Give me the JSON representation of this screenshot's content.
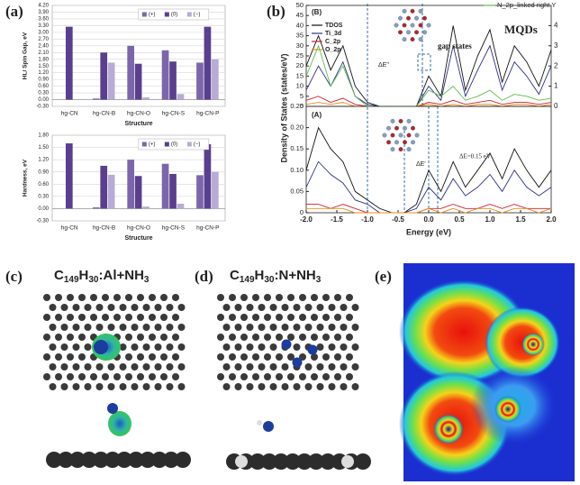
{
  "panels": [
    "(a)",
    "(b)",
    "(c)",
    "(d)",
    "(e)"
  ],
  "chart_data": [
    {
      "type": "bar",
      "ylabel": "HL/ Spin Gap, eV",
      "xlabel": "Structure",
      "categories": [
        "hg-CN",
        "hg-CN-B",
        "hg-CN-O",
        "hg-CN-S",
        "hg-CN-P"
      ],
      "series": [
        {
          "name": "(+)",
          "color": "#7b66ab",
          "values": [
            0,
            0.05,
            2.4,
            2.2,
            1.65
          ]
        },
        {
          "name": "(0)",
          "color": "#5a3f8e",
          "values": [
            3.25,
            2.1,
            1.6,
            1.7,
            3.25
          ]
        },
        {
          "name": "(−)",
          "color": "#b9abd3",
          "values": [
            0,
            1.65,
            0.1,
            0.25,
            1.8
          ]
        }
      ],
      "ylim": [
        -0.3,
        4.2
      ],
      "yticks": [
        {
          "value": -0.3,
          "label": "-0.30"
        },
        {
          "value": 0,
          "label": "0.00"
        },
        {
          "value": 0.3,
          "label": "0.30"
        },
        {
          "value": 0.6,
          "label": "0.60"
        },
        {
          "value": 0.9,
          "label": "0.90"
        },
        {
          "value": 1.2,
          "label": "1.20"
        },
        {
          "value": 1.5,
          "label": "1.50"
        },
        {
          "value": 1.8,
          "label": "1.80"
        },
        {
          "value": 2.1,
          "label": "2.10"
        },
        {
          "value": 2.4,
          "label": "2.40"
        },
        {
          "value": 2.7,
          "label": "2.70"
        },
        {
          "value": 3,
          "label": "3.00"
        },
        {
          "value": 3.3,
          "label": "3.30"
        },
        {
          "value": 3.6,
          "label": "3.60"
        },
        {
          "value": 3.9,
          "label": "3.90"
        },
        {
          "value": 4.2,
          "label": "4.20"
        }
      ],
      "grid": true
    },
    {
      "type": "bar",
      "ylabel": "Hardness, eV",
      "xlabel": "Structure",
      "categories": [
        "hg-CN",
        "hg-CN-B",
        "hg-CN-O",
        "hg-CN-S",
        "hg-CN-P"
      ],
      "series": [
        {
          "name": "(+)",
          "color": "#7b66ab",
          "values": [
            0,
            0.03,
            1.2,
            1.1,
            0.82
          ]
        },
        {
          "name": "(0)",
          "color": "#5a3f8e",
          "values": [
            1.6,
            1.05,
            0.8,
            0.85,
            1.58
          ]
        },
        {
          "name": "(−)",
          "color": "#b9abd3",
          "values": [
            0,
            0.83,
            0.05,
            0.12,
            0.9
          ]
        }
      ],
      "ylim": [
        -0.3,
        1.8
      ],
      "yticks": [
        {
          "value": -0.3,
          "label": "-0.30"
        },
        {
          "value": 0,
          "label": "0.00"
        },
        {
          "value": 0.3,
          "label": "0.30"
        },
        {
          "value": 0.6,
          "label": "0.60"
        },
        {
          "value": 0.9,
          "label": "0.90"
        },
        {
          "value": 1.2,
          "label": "1.20"
        },
        {
          "value": 1.5,
          "label": "1.50"
        },
        {
          "value": 1.8,
          "label": "1.80"
        }
      ],
      "grid": true
    },
    {
      "type": "line",
      "ylabel": "Density of States (states/eV)",
      "annotations": [
        "(B)",
        "gap states",
        "MQDs",
        "ΔE''"
      ],
      "x": [
        -2,
        -1.8,
        -1.6,
        -1.4,
        -1.2,
        -1,
        -0.8,
        -0.6,
        -0.4,
        -0.2,
        0,
        0.2,
        0.4,
        0.6,
        0.8,
        1,
        1.2,
        1.4,
        1.6,
        1.8,
        2
      ],
      "series": [
        {
          "name": "TDOS",
          "color": "#111111",
          "values": [
            20,
            35,
            18,
            30,
            10,
            2,
            0,
            0,
            0,
            0,
            15,
            5,
            40,
            8,
            25,
            38,
            12,
            30,
            22,
            10,
            28
          ]
        },
        {
          "name": "Ti_3d",
          "color": "#2b2f8a",
          "values": [
            8,
            20,
            10,
            22,
            5,
            1,
            0,
            0,
            0,
            0,
            10,
            3,
            30,
            5,
            18,
            30,
            8,
            22,
            15,
            6,
            20
          ]
        },
        {
          "name": "C_2p",
          "color": "#d0202a",
          "values": [
            3,
            5,
            2,
            4,
            1,
            0,
            0,
            0,
            0,
            0,
            2,
            1,
            3,
            1,
            2,
            3,
            1,
            2,
            2,
            1,
            2
          ]
        },
        {
          "name": "O_2p",
          "color": "#e88a1a",
          "values": [
            1,
            2,
            1,
            2,
            0,
            0,
            0,
            0,
            0,
            0,
            1,
            0,
            1,
            0,
            1,
            1,
            0,
            1,
            1,
            0,
            1
          ]
        },
        {
          "name": "N_2p_linked right Y",
          "color": "#5cbf4a",
          "axis": "y2",
          "values": [
            1.5,
            3,
            1,
            2,
            0.5,
            0,
            0,
            0,
            0,
            0,
            0.8,
            0.5,
            1,
            0.3,
            0.5,
            0.8,
            0.3,
            0.6,
            0.5,
            0.3,
            0.4
          ]
        }
      ],
      "xlim": [
        -2,
        2
      ],
      "ylim": [
        0,
        50
      ],
      "yticks": [
        0,
        5,
        10,
        15,
        20,
        25,
        30,
        35,
        40,
        45,
        50
      ],
      "y2lim": [
        0,
        5
      ],
      "y2ticks": [
        0,
        1,
        2,
        3,
        4
      ]
    },
    {
      "type": "line",
      "xlabel": "Energy (eV)",
      "annotations": [
        "(A)",
        "ΔE'",
        "ΔE=0.15 eV"
      ],
      "x": [
        -2,
        -1.8,
        -1.6,
        -1.4,
        -1.2,
        -1,
        -0.8,
        -0.6,
        -0.4,
        -0.2,
        0,
        0.2,
        0.4,
        0.6,
        0.8,
        1,
        1.2,
        1.4,
        1.6,
        1.8,
        2
      ],
      "series": [
        {
          "name": "TDOS",
          "color": "#111111",
          "values": [
            0.1,
            0.2,
            0.15,
            0.12,
            0.05,
            0.03,
            0.01,
            0,
            0,
            0.02,
            0.1,
            0.05,
            0.12,
            0.06,
            0.1,
            0.14,
            0.08,
            0.15,
            0.1,
            0.06,
            0.1
          ]
        },
        {
          "name": "Ti_3d",
          "color": "#2b2f8a",
          "values": [
            0.06,
            0.12,
            0.09,
            0.07,
            0.03,
            0.02,
            0,
            0,
            0,
            0.01,
            0.06,
            0.03,
            0.08,
            0.04,
            0.06,
            0.09,
            0.05,
            0.1,
            0.06,
            0.04,
            0.06
          ]
        },
        {
          "name": "C_2p",
          "color": "#d0202a",
          "values": [
            0.02,
            0.02,
            0.01,
            0.02,
            0.01,
            0,
            0,
            0,
            0,
            0,
            0.01,
            0.01,
            0.02,
            0.01,
            0.01,
            0.02,
            0.01,
            0.02,
            0.01,
            0.01,
            0.01
          ]
        },
        {
          "name": "O_2p",
          "color": "#e88a1a",
          "values": [
            0.01,
            0.01,
            0.01,
            0.01,
            0,
            0,
            0,
            0,
            0,
            0,
            0.01,
            0,
            0.01,
            0,
            0.01,
            0.01,
            0,
            0.01,
            0.01,
            0,
            0.01
          ]
        }
      ],
      "xlim": [
        -2,
        2
      ],
      "xticks": [
        {
          "value": -2,
          "label": "-2.0"
        },
        -1.5,
        {
          "value": -1,
          "label": "-1.0"
        },
        -0.5,
        {
          "value": 0,
          "label": "0.0"
        },
        0.5,
        {
          "value": 1,
          "label": "1.0"
        },
        1.5,
        {
          "value": 2,
          "label": "2.0"
        }
      ],
      "ylim": [
        0,
        0.25
      ],
      "yticks": [
        0,
        0.05,
        {
          "value": 0.1,
          "label": "0.10"
        },
        0.15,
        {
          "value": 0.2,
          "label": "0.20"
        },
        0.25
      ]
    }
  ],
  "structures": [
    {
      "formula": [
        "C",
        "149",
        "H",
        "30",
        ":Al+NH",
        "3"
      ]
    },
    {
      "formula": [
        "C",
        "149",
        "H",
        "30",
        ":N+NH",
        "3"
      ]
    }
  ]
}
